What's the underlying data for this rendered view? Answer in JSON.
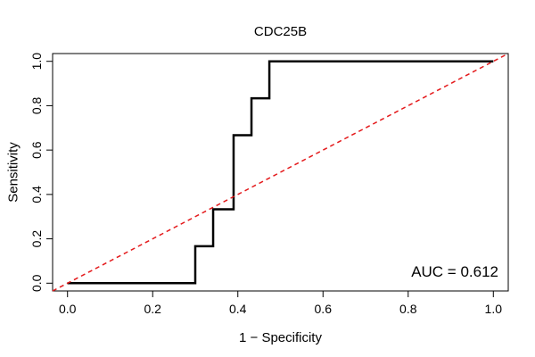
{
  "chart_data": {
    "type": "line",
    "title": "CDC25B",
    "xlabel": "1 − Specificity",
    "ylabel": "Sensitivity",
    "xlim": [
      -0.035,
      1.035
    ],
    "ylim": [
      -0.035,
      1.035
    ],
    "x_ticks": [
      0.0,
      0.2,
      0.4,
      0.6,
      0.8,
      1.0
    ],
    "x_tick_labels": [
      "0.0",
      "0.2",
      "0.4",
      "0.6",
      "0.8",
      "1.0"
    ],
    "y_ticks": [
      0.0,
      0.2,
      0.4,
      0.6,
      0.8,
      1.0
    ],
    "y_tick_labels": [
      "0.0",
      "0.2",
      "0.4",
      "0.6",
      "0.8",
      "1.0"
    ],
    "grid": false,
    "annotation": "AUC = 0.612",
    "series": [
      {
        "name": "ROC curve",
        "color": "#000000",
        "style": "solid-step",
        "x": [
          0.0,
          0.3,
          0.3,
          0.342,
          0.342,
          0.39,
          0.39,
          0.432,
          0.432,
          0.474,
          0.474,
          1.0
        ],
        "y": [
          0.0,
          0.0,
          0.1667,
          0.1667,
          0.3333,
          0.3333,
          0.6667,
          0.6667,
          0.8333,
          0.8333,
          1.0,
          1.0
        ]
      },
      {
        "name": "Reference diagonal",
        "color": "#e41a1c",
        "style": "dashed",
        "x": [
          -0.035,
          1.035
        ],
        "y": [
          -0.035,
          1.035
        ]
      }
    ]
  }
}
